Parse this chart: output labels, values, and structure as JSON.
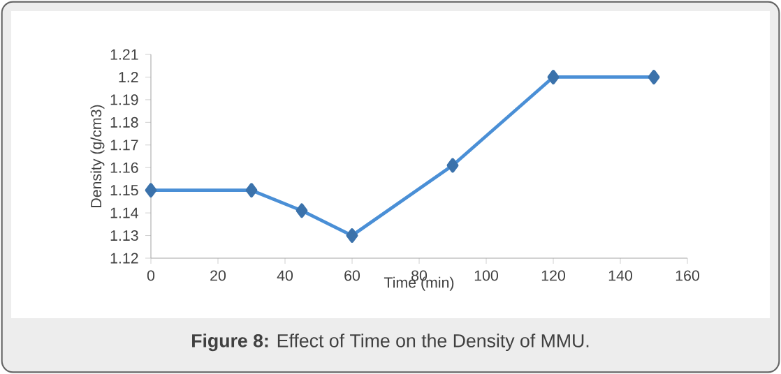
{
  "chart_data": {
    "type": "line",
    "xlabel": "Time (min)",
    "ylabel": "Density (g/cm3)",
    "x": [
      0,
      30,
      45,
      60,
      90,
      120,
      150
    ],
    "series": [
      {
        "color": "#4a8fd6",
        "values": [
          1.15,
          1.15,
          1.141,
          1.13,
          1.161,
          1.2,
          1.2
        ]
      }
    ],
    "xlim": [
      0,
      160
    ],
    "xticks": [
      0,
      20,
      40,
      60,
      80,
      100,
      120,
      140,
      160
    ],
    "ylim": [
      1.12,
      1.21
    ],
    "yticks": [
      1.12,
      1.13,
      1.14,
      1.15,
      1.16,
      1.17,
      1.18,
      1.19,
      1.2,
      1.21
    ],
    "marker": "diamond",
    "line_style": "solid",
    "annotations": [
      "**Figure 8:** Effect of Time on the Density of MMU."
    ]
  }
}
